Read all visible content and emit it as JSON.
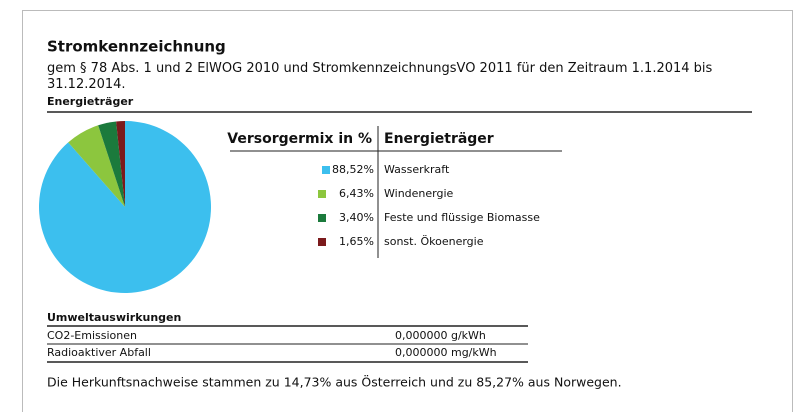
{
  "header": {
    "title": "Stromkennzeichnung",
    "subtitle": "gem § 78 Abs. 1 und 2 ElWOG 2010 und StromkennzeichnungsVO 2011 für den Zeitraum 1.1.2014 bis 31.12.2014.",
    "section": "Energieträger"
  },
  "chart_data": {
    "type": "pie",
    "columns": [
      "Versorgermix in %",
      "Energieträger"
    ],
    "categories": [
      "Wasserkraft",
      "Windenergie",
      "Feste und flüssige Biomasse",
      "sonst. Ökoenergie"
    ],
    "values": [
      88.52,
      6.43,
      3.4,
      1.65
    ],
    "value_labels": [
      "88,52%",
      "6,43%",
      "3,40%",
      "1,65%"
    ],
    "colors": [
      "#3cbfee",
      "#8cc63e",
      "#1b7a3c",
      "#7b1a1c"
    ]
  },
  "table": {
    "title": "Umweltauswirkungen",
    "rows": [
      [
        "CO2-Emissionen",
        "0,000000 g/kWh"
      ],
      [
        "Radioaktiver Abfall",
        "0,000000 mg/kWh"
      ]
    ]
  },
  "footer": "Die Herkunftsnachweise stammen zu 14,73% aus Österreich und zu 85,27% aus Norwegen."
}
